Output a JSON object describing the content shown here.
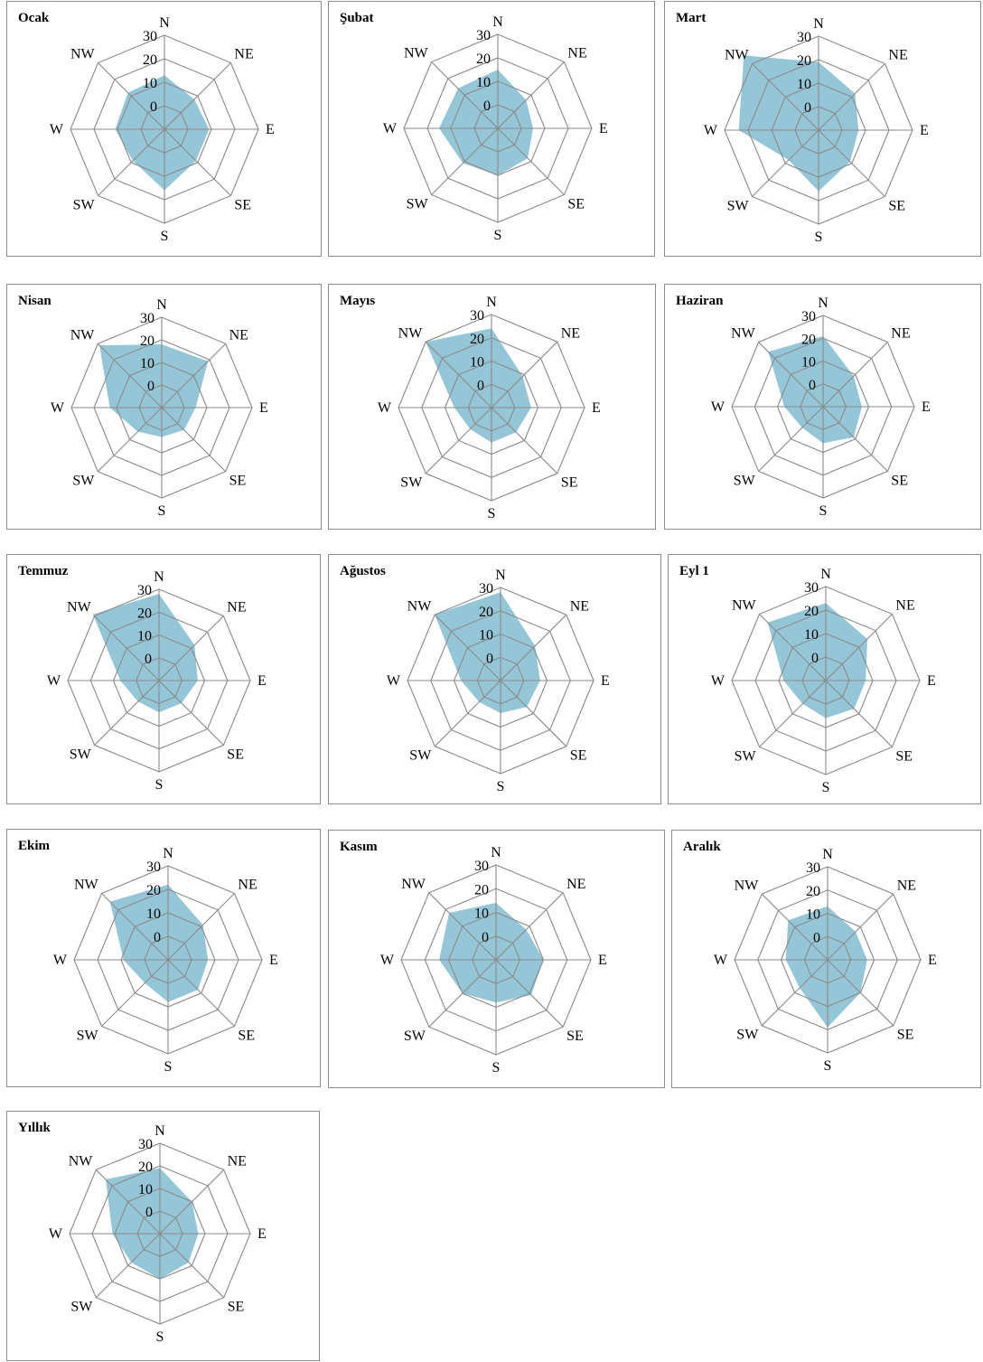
{
  "chart_data": [
    {
      "type": "radar",
      "title": "Ocak",
      "categories": [
        "N",
        "NE",
        "E",
        "SE",
        "S",
        "SW",
        "W",
        "NW"
      ],
      "ticks": [
        "0",
        "10",
        "20",
        "30"
      ],
      "rlim": [
        0,
        30
      ],
      "values": [
        13,
        8,
        9,
        9,
        16,
        9,
        11,
        12
      ]
    },
    {
      "type": "radar",
      "title": "Şubat",
      "categories": [
        "N",
        "NE",
        "E",
        "SE",
        "S",
        "SW",
        "W",
        "NW"
      ],
      "ticks": [
        "0",
        "10",
        "20",
        "30"
      ],
      "rlim": [
        0,
        30
      ],
      "values": [
        15,
        7,
        5,
        8,
        10,
        11,
        15,
        14
      ]
    },
    {
      "type": "radar",
      "title": "Mart",
      "categories": [
        "N",
        "NE",
        "E",
        "SE",
        "S",
        "SW",
        "W",
        "NW"
      ],
      "ticks": [
        "0",
        "10",
        "20",
        "30"
      ],
      "rlim": [
        0,
        30
      ],
      "values": [
        19,
        12,
        7,
        9,
        16,
        8,
        24,
        35
      ]
    },
    {
      "type": "radar",
      "title": "Nisan",
      "categories": [
        "N",
        "NE",
        "E",
        "SE",
        "S",
        "SW",
        "W",
        "NW"
      ],
      "ticks": [
        "0",
        "10",
        "20",
        "30"
      ],
      "rlim": [
        0,
        30
      ],
      "values": [
        18,
        19,
        5,
        4,
        3,
        5,
        13,
        29
      ]
    },
    {
      "type": "radar",
      "title": "Mayıs",
      "categories": [
        "N",
        "NE",
        "E",
        "SE",
        "S",
        "SW",
        "W",
        "NW"
      ],
      "ticks": [
        "0",
        "10",
        "20",
        "30"
      ],
      "rlim": [
        0,
        30
      ],
      "values": [
        24,
        9,
        7,
        5,
        5,
        3,
        6,
        30
      ]
    },
    {
      "type": "radar",
      "title": "Haziran",
      "categories": [
        "N",
        "NE",
        "E",
        "SE",
        "S",
        "SW",
        "W",
        "NW"
      ],
      "ticks": [
        "0",
        "10",
        "20",
        "30"
      ],
      "rlim": [
        0,
        30
      ],
      "values": [
        21,
        9,
        7,
        9,
        6,
        3,
        7,
        24
      ]
    },
    {
      "type": "radar",
      "title": "Temmuz",
      "categories": [
        "N",
        "NE",
        "E",
        "SE",
        "S",
        "SW",
        "W",
        "NW"
      ],
      "ticks": [
        "0",
        "10",
        "20",
        "30"
      ],
      "rlim": [
        0,
        30
      ],
      "values": [
        28,
        12,
        7,
        4,
        4,
        3,
        7,
        31
      ]
    },
    {
      "type": "radar",
      "title": "Ağustos",
      "categories": [
        "N",
        "NE",
        "E",
        "SE",
        "S",
        "SW",
        "W",
        "NW"
      ],
      "ticks": [
        "0",
        "10",
        "20",
        "30"
      ],
      "rlim": [
        0,
        30
      ],
      "values": [
        28,
        11,
        7,
        6,
        4,
        3,
        7,
        30
      ]
    },
    {
      "type": "radar",
      "title": "Eyl 1",
      "categories": [
        "N",
        "NE",
        "E",
        "SE",
        "S",
        "SW",
        "W",
        "NW"
      ],
      "ticks": [
        "0",
        "10",
        "20",
        "30"
      ],
      "rlim": [
        0,
        30
      ],
      "values": [
        23,
        15,
        7,
        7,
        6,
        4,
        8,
        25
      ]
    },
    {
      "type": "radar",
      "title": "Ekim",
      "categories": [
        "N",
        "NE",
        "E",
        "SE",
        "S",
        "SW",
        "W",
        "NW"
      ],
      "ticks": [
        "0",
        "10",
        "20",
        "30"
      ],
      "rlim": [
        0,
        30
      ],
      "values": [
        22,
        11,
        7,
        8,
        8,
        4,
        9,
        25
      ]
    },
    {
      "type": "radar",
      "title": "Kasım",
      "categories": [
        "N",
        "NE",
        "E",
        "SE",
        "S",
        "SW",
        "W",
        "NW"
      ],
      "ticks": [
        "0",
        "10",
        "20",
        "30"
      ],
      "rlim": [
        0,
        30
      ],
      "values": [
        14,
        8,
        10,
        11,
        8,
        10,
        14,
        18
      ]
    },
    {
      "type": "radar",
      "title": "Aralık",
      "categories": [
        "N",
        "NE",
        "E",
        "SE",
        "S",
        "SW",
        "W",
        "NW"
      ],
      "ticks": [
        "0",
        "10",
        "20",
        "30"
      ],
      "rlim": [
        0,
        30
      ],
      "values": [
        13,
        7,
        7,
        10,
        19,
        7,
        8,
        14
      ]
    },
    {
      "type": "radar",
      "title": "Yıllık",
      "categories": [
        "N",
        "NE",
        "E",
        "SE",
        "S",
        "SW",
        "W",
        "NW"
      ],
      "ticks": [
        "0",
        "10",
        "20",
        "30"
      ],
      "rlim": [
        0,
        30
      ],
      "values": [
        19,
        10,
        7,
        8,
        10,
        8,
        11,
        24
      ]
    }
  ],
  "colors": {
    "area": "#8fc3d6",
    "grid": "#8a8a8a",
    "border": "#8c8c8c"
  }
}
